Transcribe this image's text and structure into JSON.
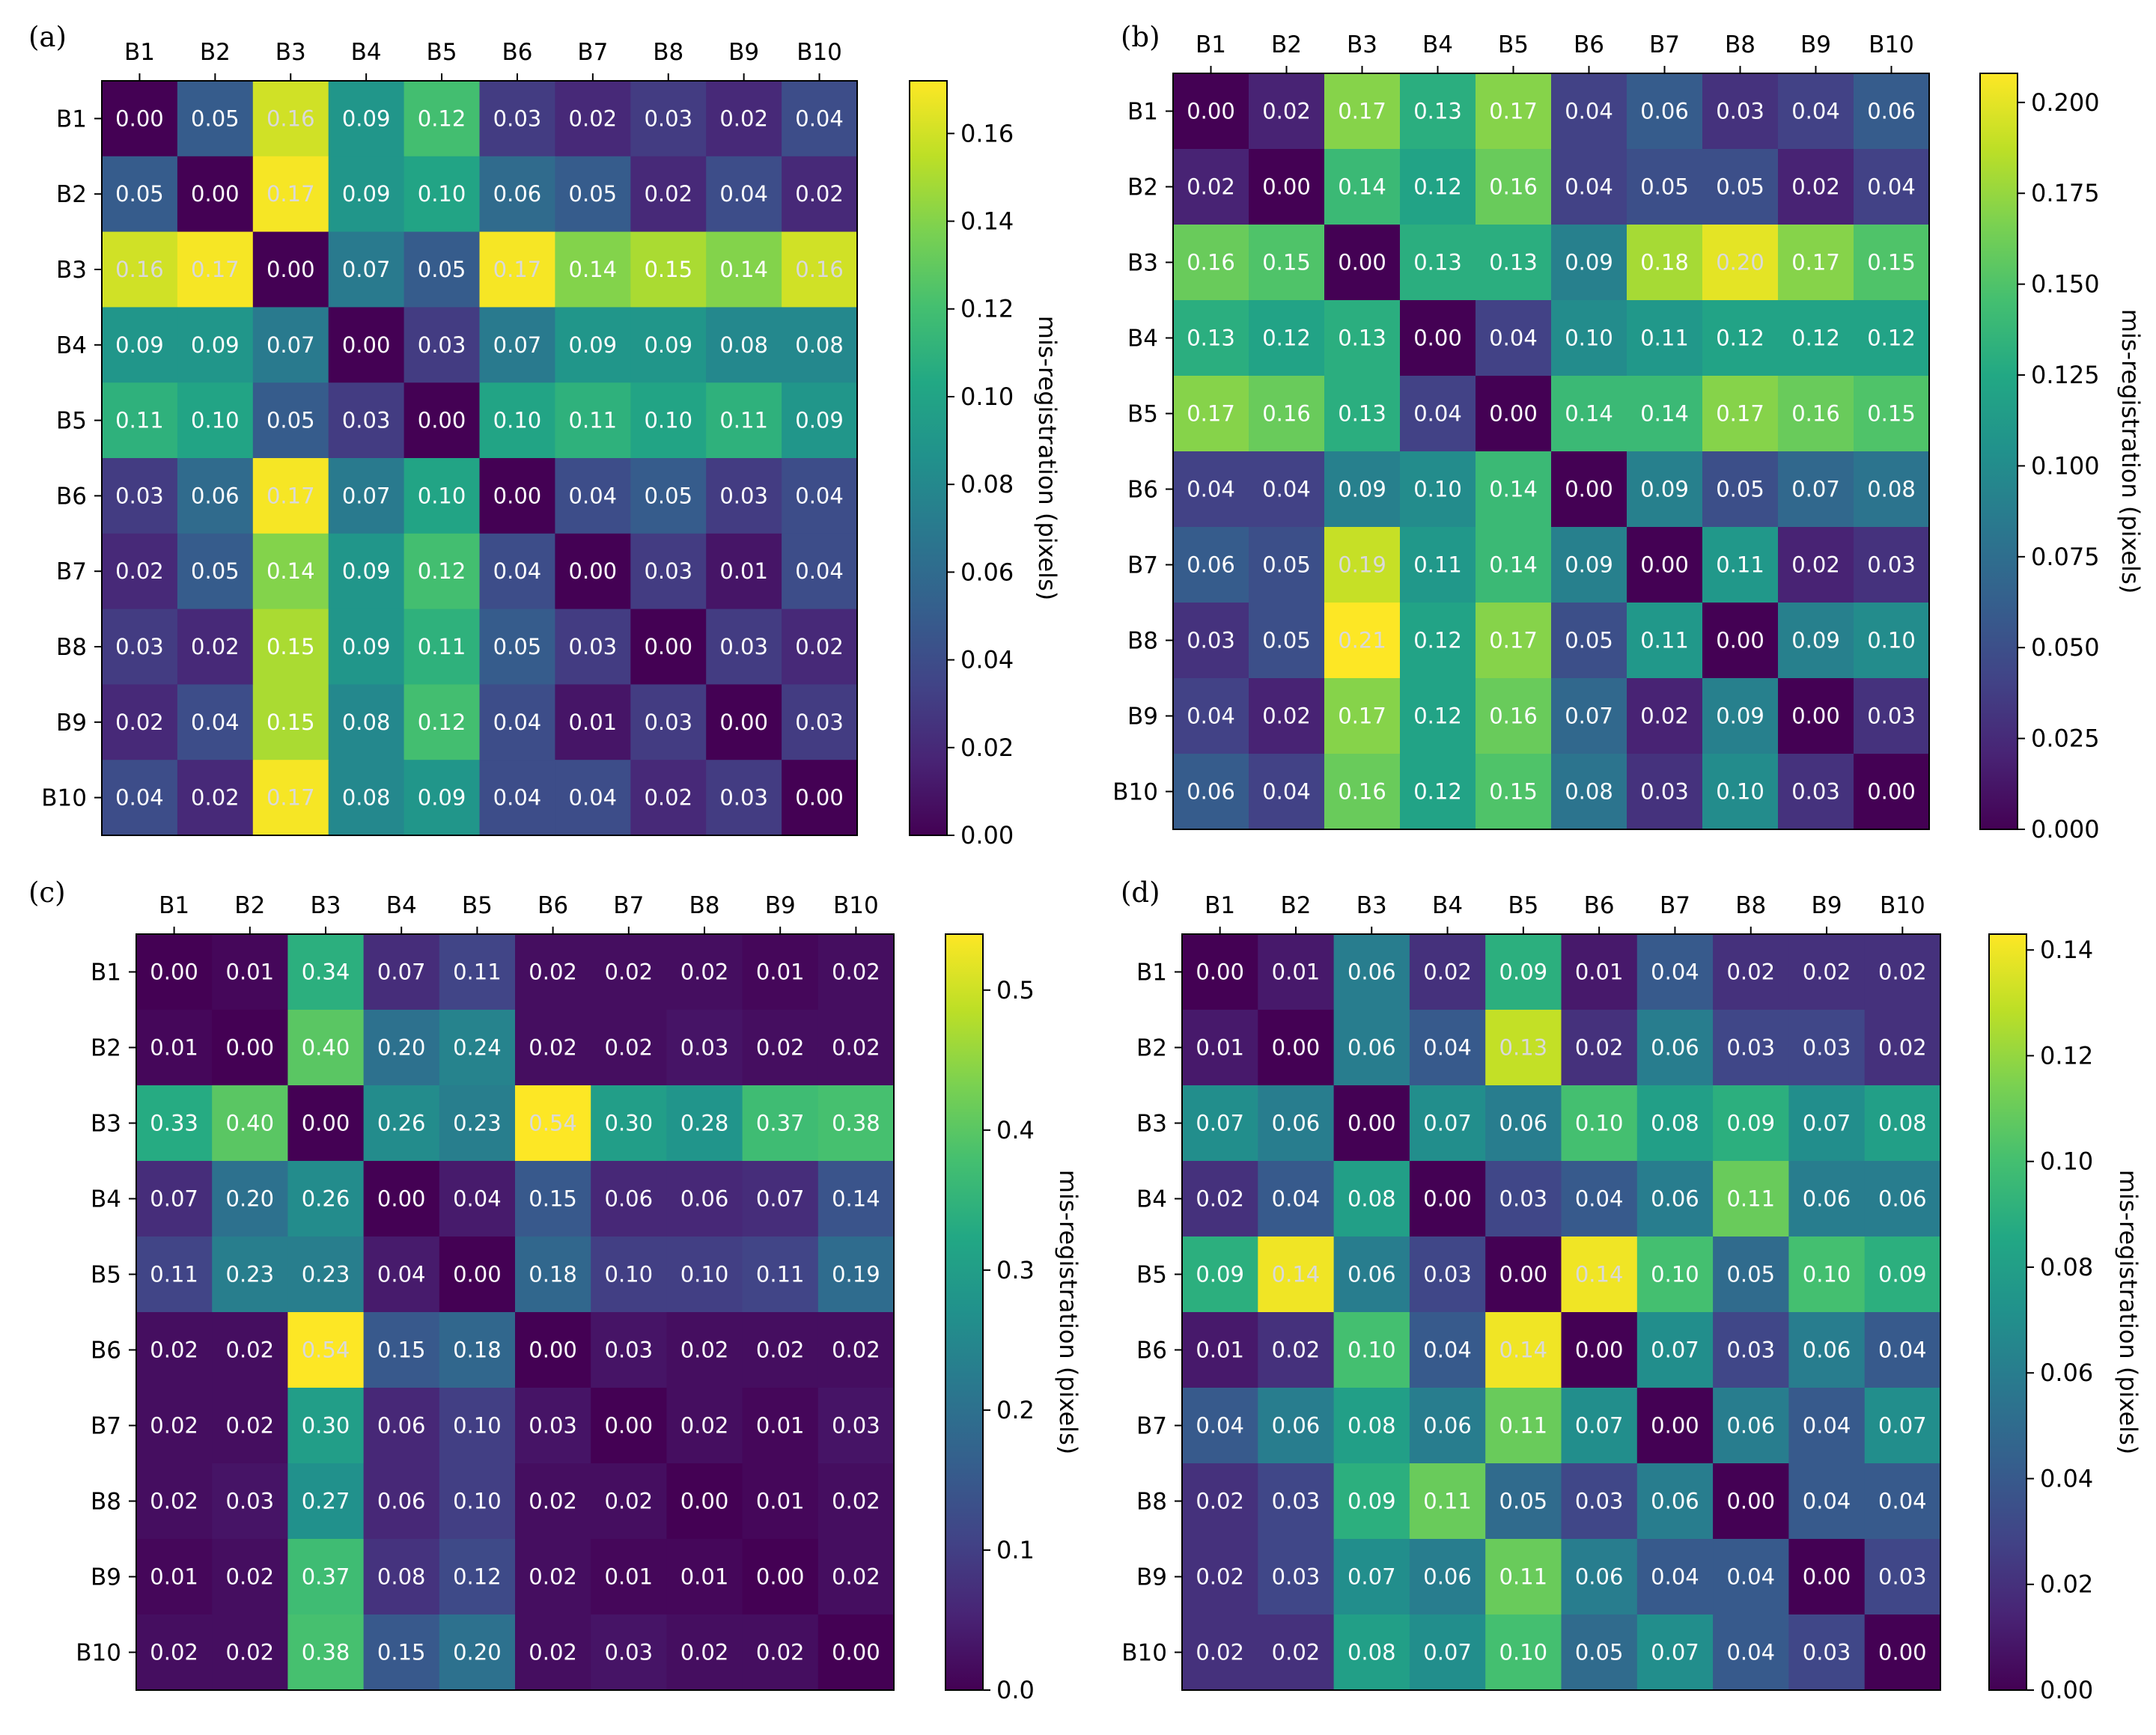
{
  "chart_data": [
    {
      "type": "heatmap",
      "panel_label": "(a)",
      "row_labels": [
        "B1",
        "B2",
        "B3",
        "B4",
        "B5",
        "B6",
        "B7",
        "B8",
        "B9",
        "B10"
      ],
      "col_labels": [
        "B1",
        "B2",
        "B3",
        "B4",
        "B5",
        "B6",
        "B7",
        "B8",
        "B9",
        "B10"
      ],
      "values": [
        [
          0.0,
          0.05,
          0.16,
          0.09,
          0.12,
          0.03,
          0.02,
          0.03,
          0.02,
          0.04
        ],
        [
          0.05,
          0.0,
          0.17,
          0.09,
          0.1,
          0.06,
          0.05,
          0.02,
          0.04,
          0.02
        ],
        [
          0.16,
          0.17,
          0.0,
          0.07,
          0.05,
          0.17,
          0.14,
          0.15,
          0.14,
          0.16
        ],
        [
          0.09,
          0.09,
          0.07,
          0.0,
          0.03,
          0.07,
          0.09,
          0.09,
          0.08,
          0.08
        ],
        [
          0.11,
          0.1,
          0.05,
          0.03,
          0.0,
          0.1,
          0.11,
          0.1,
          0.11,
          0.09
        ],
        [
          0.03,
          0.06,
          0.17,
          0.07,
          0.1,
          0.0,
          0.04,
          0.05,
          0.03,
          0.04
        ],
        [
          0.02,
          0.05,
          0.14,
          0.09,
          0.12,
          0.04,
          0.0,
          0.03,
          0.01,
          0.04
        ],
        [
          0.03,
          0.02,
          0.15,
          0.09,
          0.11,
          0.05,
          0.03,
          0.0,
          0.03,
          0.02
        ],
        [
          0.02,
          0.04,
          0.15,
          0.08,
          0.12,
          0.04,
          0.01,
          0.03,
          0.0,
          0.03
        ],
        [
          0.04,
          0.02,
          0.17,
          0.08,
          0.09,
          0.04,
          0.04,
          0.02,
          0.03,
          0.0
        ]
      ],
      "vmin": 0.0,
      "vmax": 0.172,
      "colorbar_ticks": [
        "0.00",
        "0.02",
        "0.04",
        "0.06",
        "0.08",
        "0.10",
        "0.12",
        "0.14",
        "0.16"
      ],
      "colorbar_label": "mis-registration (pixels)"
    },
    {
      "type": "heatmap",
      "panel_label": "(b)",
      "row_labels": [
        "B1",
        "B2",
        "B3",
        "B4",
        "B5",
        "B6",
        "B7",
        "B8",
        "B9",
        "B10"
      ],
      "col_labels": [
        "B1",
        "B2",
        "B3",
        "B4",
        "B5",
        "B6",
        "B7",
        "B8",
        "B9",
        "B10"
      ],
      "values": [
        [
          0.0,
          0.02,
          0.17,
          0.13,
          0.17,
          0.04,
          0.06,
          0.03,
          0.04,
          0.06
        ],
        [
          0.02,
          0.0,
          0.14,
          0.12,
          0.16,
          0.04,
          0.05,
          0.05,
          0.02,
          0.04
        ],
        [
          0.16,
          0.15,
          0.0,
          0.13,
          0.13,
          0.09,
          0.18,
          0.2,
          0.17,
          0.15
        ],
        [
          0.13,
          0.12,
          0.13,
          0.0,
          0.04,
          0.1,
          0.11,
          0.12,
          0.12,
          0.12
        ],
        [
          0.17,
          0.16,
          0.13,
          0.04,
          0.0,
          0.14,
          0.14,
          0.17,
          0.16,
          0.15
        ],
        [
          0.04,
          0.04,
          0.09,
          0.1,
          0.14,
          0.0,
          0.09,
          0.05,
          0.07,
          0.08
        ],
        [
          0.06,
          0.05,
          0.19,
          0.11,
          0.14,
          0.09,
          0.0,
          0.11,
          0.02,
          0.03
        ],
        [
          0.03,
          0.05,
          0.21,
          0.12,
          0.17,
          0.05,
          0.11,
          0.0,
          0.09,
          0.1
        ],
        [
          0.04,
          0.02,
          0.17,
          0.12,
          0.16,
          0.07,
          0.02,
          0.09,
          0.0,
          0.03
        ],
        [
          0.06,
          0.04,
          0.16,
          0.12,
          0.15,
          0.08,
          0.03,
          0.1,
          0.03,
          0.0
        ]
      ],
      "vmin": 0.0,
      "vmax": 0.208,
      "colorbar_ticks": [
        "0.000",
        "0.025",
        "0.050",
        "0.075",
        "0.100",
        "0.125",
        "0.150",
        "0.175",
        "0.200"
      ],
      "colorbar_label": "mis-registration (pixels)"
    },
    {
      "type": "heatmap",
      "panel_label": "(c)",
      "row_labels": [
        "B1",
        "B2",
        "B3",
        "B4",
        "B5",
        "B6",
        "B7",
        "B8",
        "B9",
        "B10"
      ],
      "col_labels": [
        "B1",
        "B2",
        "B3",
        "B4",
        "B5",
        "B6",
        "B7",
        "B8",
        "B9",
        "B10"
      ],
      "values": [
        [
          0.0,
          0.01,
          0.34,
          0.07,
          0.11,
          0.02,
          0.02,
          0.02,
          0.01,
          0.02
        ],
        [
          0.01,
          0.0,
          0.4,
          0.2,
          0.24,
          0.02,
          0.02,
          0.03,
          0.02,
          0.02
        ],
        [
          0.33,
          0.4,
          0.0,
          0.26,
          0.23,
          0.54,
          0.3,
          0.28,
          0.37,
          0.38
        ],
        [
          0.07,
          0.2,
          0.26,
          0.0,
          0.04,
          0.15,
          0.06,
          0.06,
          0.07,
          0.14
        ],
        [
          0.11,
          0.23,
          0.23,
          0.04,
          0.0,
          0.18,
          0.1,
          0.1,
          0.11,
          0.19
        ],
        [
          0.02,
          0.02,
          0.54,
          0.15,
          0.18,
          0.0,
          0.03,
          0.02,
          0.02,
          0.02
        ],
        [
          0.02,
          0.02,
          0.3,
          0.06,
          0.1,
          0.03,
          0.0,
          0.02,
          0.01,
          0.03
        ],
        [
          0.02,
          0.03,
          0.27,
          0.06,
          0.1,
          0.02,
          0.02,
          0.0,
          0.01,
          0.02
        ],
        [
          0.01,
          0.02,
          0.37,
          0.08,
          0.12,
          0.02,
          0.01,
          0.01,
          0.0,
          0.02
        ],
        [
          0.02,
          0.02,
          0.38,
          0.15,
          0.2,
          0.02,
          0.03,
          0.02,
          0.02,
          0.0
        ]
      ],
      "vmin": 0.0,
      "vmax": 0.54,
      "colorbar_ticks": [
        "0.0",
        "0.1",
        "0.2",
        "0.3",
        "0.4",
        "0.5"
      ],
      "colorbar_label": "mis-registration (pixels)"
    },
    {
      "type": "heatmap",
      "panel_label": "(d)",
      "row_labels": [
        "B1",
        "B2",
        "B3",
        "B4",
        "B5",
        "B6",
        "B7",
        "B8",
        "B9",
        "B10"
      ],
      "col_labels": [
        "B1",
        "B2",
        "B3",
        "B4",
        "B5",
        "B6",
        "B7",
        "B8",
        "B9",
        "B10"
      ],
      "values": [
        [
          0.0,
          0.01,
          0.06,
          0.02,
          0.09,
          0.01,
          0.04,
          0.02,
          0.02,
          0.02
        ],
        [
          0.01,
          0.0,
          0.06,
          0.04,
          0.13,
          0.02,
          0.06,
          0.03,
          0.03,
          0.02
        ],
        [
          0.07,
          0.06,
          0.0,
          0.07,
          0.06,
          0.1,
          0.08,
          0.09,
          0.07,
          0.08
        ],
        [
          0.02,
          0.04,
          0.08,
          0.0,
          0.03,
          0.04,
          0.06,
          0.11,
          0.06,
          0.06
        ],
        [
          0.09,
          0.14,
          0.06,
          0.03,
          0.0,
          0.14,
          0.1,
          0.05,
          0.1,
          0.09
        ],
        [
          0.01,
          0.02,
          0.1,
          0.04,
          0.14,
          0.0,
          0.07,
          0.03,
          0.06,
          0.04
        ],
        [
          0.04,
          0.06,
          0.08,
          0.06,
          0.11,
          0.07,
          0.0,
          0.06,
          0.04,
          0.07
        ],
        [
          0.02,
          0.03,
          0.09,
          0.11,
          0.05,
          0.03,
          0.06,
          0.0,
          0.04,
          0.04
        ],
        [
          0.02,
          0.03,
          0.07,
          0.06,
          0.11,
          0.06,
          0.04,
          0.04,
          0.0,
          0.03
        ],
        [
          0.02,
          0.02,
          0.08,
          0.07,
          0.1,
          0.05,
          0.07,
          0.04,
          0.03,
          0.0
        ]
      ],
      "vmin": 0.0,
      "vmax": 0.143,
      "colorbar_ticks": [
        "0.00",
        "0.02",
        "0.04",
        "0.06",
        "0.08",
        "0.10",
        "0.12",
        "0.14"
      ],
      "colorbar_label": "mis-registration (pixels)"
    }
  ]
}
